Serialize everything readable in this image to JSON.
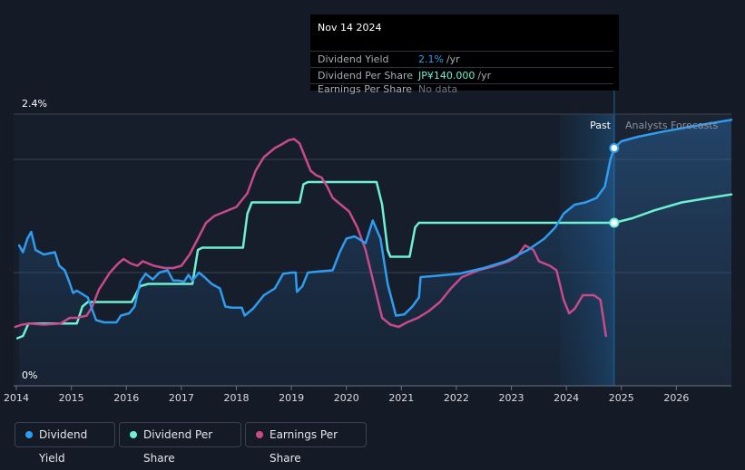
{
  "tooltip": {
    "date": "Nov 14 2024",
    "rows": [
      {
        "label": "Dividend Yield",
        "value": "2.1%",
        "unit": "/yr",
        "color": "#2f9cf0"
      },
      {
        "label": "Dividend Per Share",
        "value": "JP¥140.000",
        "unit": "/yr",
        "color": "#6ff0d3"
      },
      {
        "label": "Earnings Per Share",
        "value": "No data",
        "unit": "",
        "color": "#6f7681"
      }
    ]
  },
  "regions": {
    "past": "Past",
    "forecast": "Analysts Forecasts"
  },
  "legend": [
    {
      "label": "Dividend Yield",
      "color": "#2f9cf0"
    },
    {
      "label": "Dividend Per Share",
      "color": "#6ff0d3"
    },
    {
      "label": "Earnings Per Share",
      "color": "#c94a8a"
    }
  ],
  "chart_data": {
    "type": "line",
    "x_range": [
      2013.95,
      2027
    ],
    "ylim": [
      0,
      2.4
    ],
    "y_tick_labels": [
      "0%",
      "2.4%"
    ],
    "x_ticks": [
      2014,
      2015,
      2016,
      2017,
      2018,
      2019,
      2020,
      2021,
      2022,
      2023,
      2024,
      2025,
      2026
    ],
    "forecast_start": 2024.87,
    "past_shade_start": 2023.88,
    "series": [
      {
        "name": "Dividend Yield",
        "unit": "%",
        "color": "#2f9cf0",
        "filled": true,
        "points": [
          [
            2014.05,
            1.24
          ],
          [
            2014.12,
            1.18
          ],
          [
            2014.2,
            1.3
          ],
          [
            2014.27,
            1.36
          ],
          [
            2014.35,
            1.2
          ],
          [
            2014.5,
            1.16
          ],
          [
            2014.7,
            1.18
          ],
          [
            2014.78,
            1.06
          ],
          [
            2014.88,
            1.02
          ],
          [
            2014.96,
            0.92
          ],
          [
            2015.03,
            0.82
          ],
          [
            2015.1,
            0.84
          ],
          [
            2015.3,
            0.78
          ],
          [
            2015.45,
            0.58
          ],
          [
            2015.6,
            0.56
          ],
          [
            2015.82,
            0.56
          ],
          [
            2015.9,
            0.62
          ],
          [
            2016.05,
            0.64
          ],
          [
            2016.15,
            0.7
          ],
          [
            2016.25,
            0.92
          ],
          [
            2016.35,
            0.99
          ],
          [
            2016.48,
            0.94
          ],
          [
            2016.6,
            1.0
          ],
          [
            2016.75,
            1.02
          ],
          [
            2016.85,
            0.93
          ],
          [
            2016.95,
            0.93
          ],
          [
            2017.05,
            0.92
          ],
          [
            2017.13,
            0.98
          ],
          [
            2017.2,
            0.93
          ],
          [
            2017.32,
            1.0
          ],
          [
            2017.42,
            0.96
          ],
          [
            2017.55,
            0.9
          ],
          [
            2017.7,
            0.86
          ],
          [
            2017.8,
            0.7
          ],
          [
            2017.92,
            0.69
          ],
          [
            2018.1,
            0.69
          ],
          [
            2018.15,
            0.62
          ],
          [
            2018.3,
            0.68
          ],
          [
            2018.5,
            0.8
          ],
          [
            2018.7,
            0.86
          ],
          [
            2018.85,
            0.99
          ],
          [
            2019.0,
            1.0
          ],
          [
            2019.08,
            1.0
          ],
          [
            2019.1,
            0.83
          ],
          [
            2019.2,
            0.88
          ],
          [
            2019.3,
            1.0
          ],
          [
            2019.5,
            1.01
          ],
          [
            2019.75,
            1.02
          ],
          [
            2019.88,
            1.18
          ],
          [
            2020.0,
            1.3
          ],
          [
            2020.15,
            1.32
          ],
          [
            2020.35,
            1.26
          ],
          [
            2020.48,
            1.46
          ],
          [
            2020.62,
            1.3
          ],
          [
            2020.75,
            0.9
          ],
          [
            2020.9,
            0.62
          ],
          [
            2021.05,
            0.63
          ],
          [
            2021.2,
            0.7
          ],
          [
            2021.32,
            0.78
          ],
          [
            2021.35,
            0.96
          ],
          [
            2021.6,
            0.97
          ],
          [
            2022.05,
            0.99
          ],
          [
            2022.5,
            1.04
          ],
          [
            2022.9,
            1.1
          ],
          [
            2023.3,
            1.2
          ],
          [
            2023.6,
            1.3
          ],
          [
            2023.8,
            1.4
          ],
          [
            2023.95,
            1.52
          ],
          [
            2024.15,
            1.6
          ],
          [
            2024.35,
            1.62
          ],
          [
            2024.55,
            1.66
          ],
          [
            2024.7,
            1.76
          ],
          [
            2024.8,
            2.0
          ],
          [
            2024.87,
            2.1
          ],
          [
            2025.0,
            2.16
          ],
          [
            2025.3,
            2.2
          ],
          [
            2025.8,
            2.25
          ],
          [
            2026.5,
            2.31
          ],
          [
            2027.0,
            2.35
          ]
        ]
      },
      {
        "name": "Dividend Per Share",
        "unit": "JP¥",
        "color": "#6ff0d3",
        "filled": false,
        "points": [
          [
            2014.02,
            0.42
          ],
          [
            2014.12,
            0.44
          ],
          [
            2014.22,
            0.55
          ],
          [
            2014.9,
            0.55
          ],
          [
            2015.1,
            0.55
          ],
          [
            2015.2,
            0.7
          ],
          [
            2015.3,
            0.74
          ],
          [
            2016.1,
            0.74
          ],
          [
            2016.25,
            0.88
          ],
          [
            2016.4,
            0.9
          ],
          [
            2017.2,
            0.9
          ],
          [
            2017.3,
            1.2
          ],
          [
            2017.38,
            1.22
          ],
          [
            2018.12,
            1.22
          ],
          [
            2018.2,
            1.52
          ],
          [
            2018.28,
            1.62
          ],
          [
            2019.15,
            1.62
          ],
          [
            2019.22,
            1.78
          ],
          [
            2019.3,
            1.8
          ],
          [
            2020.55,
            1.8
          ],
          [
            2020.65,
            1.6
          ],
          [
            2020.75,
            1.2
          ],
          [
            2020.8,
            1.14
          ],
          [
            2021.15,
            1.14
          ],
          [
            2021.25,
            1.4
          ],
          [
            2021.32,
            1.44
          ],
          [
            2024.87,
            1.44
          ],
          [
            2025.2,
            1.48
          ],
          [
            2025.6,
            1.55
          ],
          [
            2026.1,
            1.62
          ],
          [
            2026.6,
            1.66
          ],
          [
            2027.0,
            1.69
          ]
        ]
      },
      {
        "name": "Earnings Per Share",
        "unit": "JP¥",
        "color": "#c94a8a",
        "filled": false,
        "points": [
          [
            2013.98,
            0.52
          ],
          [
            2014.1,
            0.54
          ],
          [
            2014.25,
            0.55
          ],
          [
            2014.5,
            0.54
          ],
          [
            2014.8,
            0.55
          ],
          [
            2014.97,
            0.6
          ],
          [
            2015.1,
            0.6
          ],
          [
            2015.28,
            0.62
          ],
          [
            2015.38,
            0.7
          ],
          [
            2015.5,
            0.85
          ],
          [
            2015.7,
            1.0
          ],
          [
            2015.85,
            1.08
          ],
          [
            2015.95,
            1.12
          ],
          [
            2016.08,
            1.08
          ],
          [
            2016.2,
            1.06
          ],
          [
            2016.3,
            1.1
          ],
          [
            2016.5,
            1.06
          ],
          [
            2016.7,
            1.04
          ],
          [
            2016.85,
            1.04
          ],
          [
            2017.0,
            1.06
          ],
          [
            2017.15,
            1.16
          ],
          [
            2017.3,
            1.3
          ],
          [
            2017.45,
            1.44
          ],
          [
            2017.6,
            1.5
          ],
          [
            2017.8,
            1.54
          ],
          [
            2018.0,
            1.58
          ],
          [
            2018.2,
            1.7
          ],
          [
            2018.35,
            1.9
          ],
          [
            2018.5,
            2.02
          ],
          [
            2018.7,
            2.1
          ],
          [
            2018.85,
            2.14
          ],
          [
            2018.95,
            2.17
          ],
          [
            2019.05,
            2.18
          ],
          [
            2019.15,
            2.14
          ],
          [
            2019.25,
            2.02
          ],
          [
            2019.35,
            1.9
          ],
          [
            2019.45,
            1.86
          ],
          [
            2019.55,
            1.84
          ],
          [
            2019.65,
            1.76
          ],
          [
            2019.75,
            1.66
          ],
          [
            2019.9,
            1.6
          ],
          [
            2020.05,
            1.54
          ],
          [
            2020.2,
            1.4
          ],
          [
            2020.35,
            1.2
          ],
          [
            2020.5,
            0.9
          ],
          [
            2020.65,
            0.6
          ],
          [
            2020.8,
            0.54
          ],
          [
            2020.95,
            0.52
          ],
          [
            2021.1,
            0.56
          ],
          [
            2021.3,
            0.6
          ],
          [
            2021.5,
            0.66
          ],
          [
            2021.7,
            0.74
          ],
          [
            2021.9,
            0.86
          ],
          [
            2022.1,
            0.96
          ],
          [
            2022.4,
            1.02
          ],
          [
            2022.7,
            1.06
          ],
          [
            2022.95,
            1.1
          ],
          [
            2023.1,
            1.14
          ],
          [
            2023.25,
            1.24
          ],
          [
            2023.4,
            1.2
          ],
          [
            2023.5,
            1.1
          ],
          [
            2023.7,
            1.06
          ],
          [
            2023.82,
            1.02
          ],
          [
            2023.95,
            0.76
          ],
          [
            2024.05,
            0.64
          ],
          [
            2024.15,
            0.68
          ],
          [
            2024.3,
            0.8
          ],
          [
            2024.5,
            0.8
          ],
          [
            2024.62,
            0.76
          ],
          [
            2024.72,
            0.44
          ]
        ]
      }
    ]
  }
}
